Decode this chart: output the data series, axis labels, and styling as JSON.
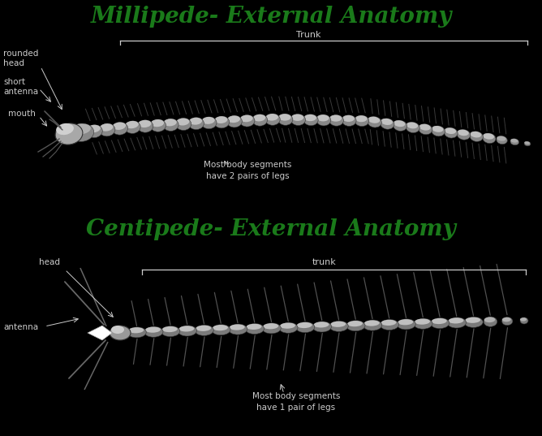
{
  "bg_color": "#000000",
  "title_color": "#1a7a1a",
  "label_color": "#cccccc",
  "line_color": "#cccccc",
  "draw_color": "#888888",
  "seg_color_light": "#d0d0d0",
  "seg_color_mid": "#b0b0b0",
  "seg_color_dark": "#888888",
  "seg_edge": "#444444",
  "millipede_title": "Millipede- External Anatomy",
  "centipede_title": "Centipede- External Anatomy",
  "mill_label_rounded_head": "rounded\nhead",
  "mill_label_short_antenna": "short\nantenna",
  "mill_label_mouth": "mouth",
  "mill_label_trunk": "Trunk",
  "mill_label_body_segs": "Most body segments\nhave 2 pairs of legs",
  "cent_label_head": "head",
  "cent_label_trunk": "trunk",
  "cent_label_antenna": "antenna",
  "cent_label_body_segs": "Most body segments\nhave 1 pair of legs",
  "title_fontsize": 20,
  "label_fontsize": 7.5,
  "fig_w": 6.68,
  "fig_h": 5.37,
  "dpi": 100
}
